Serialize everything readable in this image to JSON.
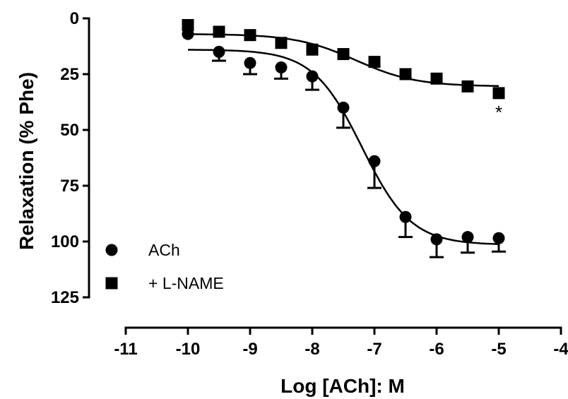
{
  "chart_data": {
    "type": "scatter",
    "title": "",
    "xlabel": "Log [ACh]: M",
    "ylabel": "Relaxation (% Phe)",
    "xlim": [
      -11,
      -4
    ],
    "ylim": [
      0,
      125
    ],
    "y_inverted": true,
    "grid": false,
    "xticks": [
      -11,
      -10,
      -9,
      -8,
      -7,
      -6,
      -5,
      -4
    ],
    "yticks": [
      0,
      25,
      50,
      75,
      100,
      125
    ],
    "legend_position": "bottom-left",
    "series": [
      {
        "name": "ACh",
        "marker": "circle",
        "x": [
          -10,
          -9.5,
          -9,
          -8.5,
          -8,
          -7.5,
          -7,
          -6.5,
          -6,
          -5.5,
          -5
        ],
        "y": [
          7,
          15,
          20,
          22,
          26,
          40,
          64,
          89,
          99,
          98,
          98.5
        ],
        "error_plus": [
          0,
          4,
          5,
          5,
          6,
          9,
          12,
          9,
          8,
          7,
          6
        ],
        "fit": {
          "bottom": 14,
          "top": 101.5,
          "logEC50": -7.2,
          "hill": 1.1,
          "x_range": [
            -10,
            -5
          ]
        }
      },
      {
        "name": "+ L-NAME",
        "marker": "square",
        "x": [
          -10,
          -9.5,
          -9,
          -8.5,
          -8,
          -7.5,
          -7,
          -6.5,
          -6,
          -5.5,
          -5
        ],
        "y": [
          3,
          6,
          7.5,
          11,
          14,
          16,
          19.5,
          25,
          27,
          30.5,
          33.5
        ],
        "error_plus": [
          0,
          0,
          0,
          0,
          0,
          0,
          0,
          0,
          0,
          0,
          0
        ],
        "fit": {
          "bottom": 7,
          "top": 30.5,
          "logEC50": -7.3,
          "hill": 0.9,
          "x_range": [
            -10,
            -5
          ]
        }
      }
    ],
    "annotations": [
      {
        "text": "*",
        "x": -5,
        "y": 43
      }
    ]
  }
}
